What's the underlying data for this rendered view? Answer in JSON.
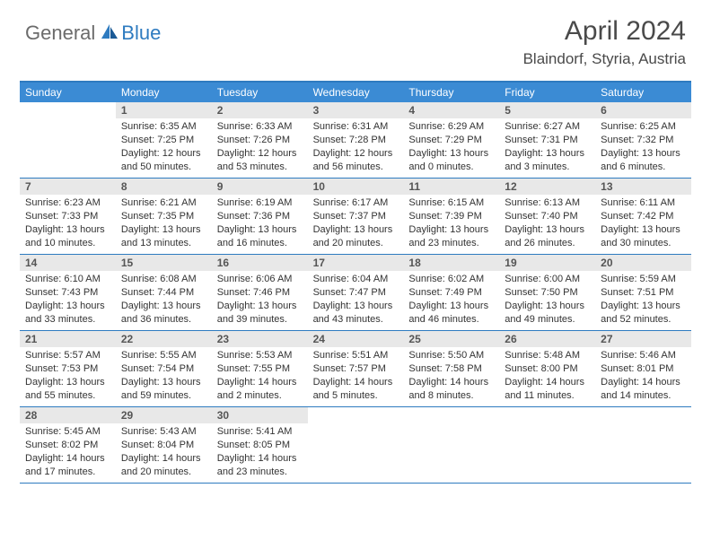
{
  "logo": {
    "general": "General",
    "blue": "Blue"
  },
  "title": "April 2024",
  "location": "Blaindorf, Styria, Austria",
  "colors": {
    "header_bg": "#3b8bd4",
    "border": "#2e7bc0",
    "daynum_bg": "#e8e8e8",
    "text": "#333333",
    "title_text": "#4a4a4a"
  },
  "dayHeaders": [
    "Sunday",
    "Monday",
    "Tuesday",
    "Wednesday",
    "Thursday",
    "Friday",
    "Saturday"
  ],
  "weeks": [
    [
      {
        "n": "",
        "sr": "",
        "ss": "",
        "dl": ""
      },
      {
        "n": "1",
        "sr": "Sunrise: 6:35 AM",
        "ss": "Sunset: 7:25 PM",
        "dl": "Daylight: 12 hours and 50 minutes."
      },
      {
        "n": "2",
        "sr": "Sunrise: 6:33 AM",
        "ss": "Sunset: 7:26 PM",
        "dl": "Daylight: 12 hours and 53 minutes."
      },
      {
        "n": "3",
        "sr": "Sunrise: 6:31 AM",
        "ss": "Sunset: 7:28 PM",
        "dl": "Daylight: 12 hours and 56 minutes."
      },
      {
        "n": "4",
        "sr": "Sunrise: 6:29 AM",
        "ss": "Sunset: 7:29 PM",
        "dl": "Daylight: 13 hours and 0 minutes."
      },
      {
        "n": "5",
        "sr": "Sunrise: 6:27 AM",
        "ss": "Sunset: 7:31 PM",
        "dl": "Daylight: 13 hours and 3 minutes."
      },
      {
        "n": "6",
        "sr": "Sunrise: 6:25 AM",
        "ss": "Sunset: 7:32 PM",
        "dl": "Daylight: 13 hours and 6 minutes."
      }
    ],
    [
      {
        "n": "7",
        "sr": "Sunrise: 6:23 AM",
        "ss": "Sunset: 7:33 PM",
        "dl": "Daylight: 13 hours and 10 minutes."
      },
      {
        "n": "8",
        "sr": "Sunrise: 6:21 AM",
        "ss": "Sunset: 7:35 PM",
        "dl": "Daylight: 13 hours and 13 minutes."
      },
      {
        "n": "9",
        "sr": "Sunrise: 6:19 AM",
        "ss": "Sunset: 7:36 PM",
        "dl": "Daylight: 13 hours and 16 minutes."
      },
      {
        "n": "10",
        "sr": "Sunrise: 6:17 AM",
        "ss": "Sunset: 7:37 PM",
        "dl": "Daylight: 13 hours and 20 minutes."
      },
      {
        "n": "11",
        "sr": "Sunrise: 6:15 AM",
        "ss": "Sunset: 7:39 PM",
        "dl": "Daylight: 13 hours and 23 minutes."
      },
      {
        "n": "12",
        "sr": "Sunrise: 6:13 AM",
        "ss": "Sunset: 7:40 PM",
        "dl": "Daylight: 13 hours and 26 minutes."
      },
      {
        "n": "13",
        "sr": "Sunrise: 6:11 AM",
        "ss": "Sunset: 7:42 PM",
        "dl": "Daylight: 13 hours and 30 minutes."
      }
    ],
    [
      {
        "n": "14",
        "sr": "Sunrise: 6:10 AM",
        "ss": "Sunset: 7:43 PM",
        "dl": "Daylight: 13 hours and 33 minutes."
      },
      {
        "n": "15",
        "sr": "Sunrise: 6:08 AM",
        "ss": "Sunset: 7:44 PM",
        "dl": "Daylight: 13 hours and 36 minutes."
      },
      {
        "n": "16",
        "sr": "Sunrise: 6:06 AM",
        "ss": "Sunset: 7:46 PM",
        "dl": "Daylight: 13 hours and 39 minutes."
      },
      {
        "n": "17",
        "sr": "Sunrise: 6:04 AM",
        "ss": "Sunset: 7:47 PM",
        "dl": "Daylight: 13 hours and 43 minutes."
      },
      {
        "n": "18",
        "sr": "Sunrise: 6:02 AM",
        "ss": "Sunset: 7:49 PM",
        "dl": "Daylight: 13 hours and 46 minutes."
      },
      {
        "n": "19",
        "sr": "Sunrise: 6:00 AM",
        "ss": "Sunset: 7:50 PM",
        "dl": "Daylight: 13 hours and 49 minutes."
      },
      {
        "n": "20",
        "sr": "Sunrise: 5:59 AM",
        "ss": "Sunset: 7:51 PM",
        "dl": "Daylight: 13 hours and 52 minutes."
      }
    ],
    [
      {
        "n": "21",
        "sr": "Sunrise: 5:57 AM",
        "ss": "Sunset: 7:53 PM",
        "dl": "Daylight: 13 hours and 55 minutes."
      },
      {
        "n": "22",
        "sr": "Sunrise: 5:55 AM",
        "ss": "Sunset: 7:54 PM",
        "dl": "Daylight: 13 hours and 59 minutes."
      },
      {
        "n": "23",
        "sr": "Sunrise: 5:53 AM",
        "ss": "Sunset: 7:55 PM",
        "dl": "Daylight: 14 hours and 2 minutes."
      },
      {
        "n": "24",
        "sr": "Sunrise: 5:51 AM",
        "ss": "Sunset: 7:57 PM",
        "dl": "Daylight: 14 hours and 5 minutes."
      },
      {
        "n": "25",
        "sr": "Sunrise: 5:50 AM",
        "ss": "Sunset: 7:58 PM",
        "dl": "Daylight: 14 hours and 8 minutes."
      },
      {
        "n": "26",
        "sr": "Sunrise: 5:48 AM",
        "ss": "Sunset: 8:00 PM",
        "dl": "Daylight: 14 hours and 11 minutes."
      },
      {
        "n": "27",
        "sr": "Sunrise: 5:46 AM",
        "ss": "Sunset: 8:01 PM",
        "dl": "Daylight: 14 hours and 14 minutes."
      }
    ],
    [
      {
        "n": "28",
        "sr": "Sunrise: 5:45 AM",
        "ss": "Sunset: 8:02 PM",
        "dl": "Daylight: 14 hours and 17 minutes."
      },
      {
        "n": "29",
        "sr": "Sunrise: 5:43 AM",
        "ss": "Sunset: 8:04 PM",
        "dl": "Daylight: 14 hours and 20 minutes."
      },
      {
        "n": "30",
        "sr": "Sunrise: 5:41 AM",
        "ss": "Sunset: 8:05 PM",
        "dl": "Daylight: 14 hours and 23 minutes."
      },
      {
        "n": "",
        "sr": "",
        "ss": "",
        "dl": ""
      },
      {
        "n": "",
        "sr": "",
        "ss": "",
        "dl": ""
      },
      {
        "n": "",
        "sr": "",
        "ss": "",
        "dl": ""
      },
      {
        "n": "",
        "sr": "",
        "ss": "",
        "dl": ""
      }
    ]
  ]
}
